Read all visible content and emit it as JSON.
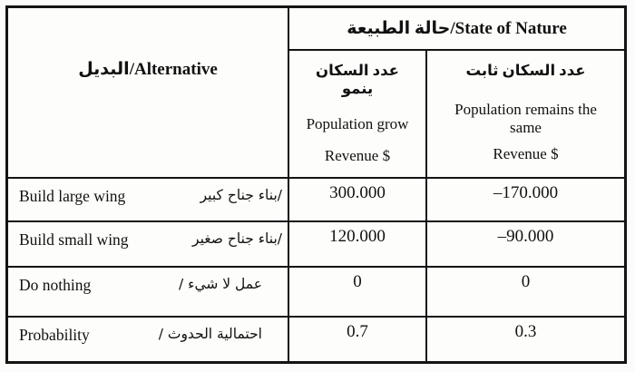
{
  "table": {
    "header": {
      "state_of_nature": "حالة الطبيعة/State of Nature",
      "alternative": "البديل/Alternative"
    },
    "columns": {
      "grow": {
        "arabic": "عدد السكان ينمو",
        "line1": "Population grow",
        "line2": "Revenue $"
      },
      "same": {
        "arabic": "عدد السكان ثابت",
        "line1": "Population remains the same",
        "line2": "Revenue $"
      }
    },
    "rows": [
      {
        "en": "Build large wing",
        "ar": "بناء جناح كبير/",
        "grow": "300.000",
        "same": "–170.000"
      },
      {
        "en": "Build small wing",
        "ar": "بناء جناح صغير/",
        "grow": "120.000",
        "same": "–90.000"
      },
      {
        "en": "Do nothing",
        "ar": "/  عمل لا شيء",
        "grow": "0",
        "same": "0"
      },
      {
        "en": "Probability",
        "ar": "/ احتمالية الحدوث",
        "grow": "0.7",
        "same": "0.3"
      }
    ]
  },
  "colors": {
    "border": "#141414",
    "background": "#fdfdfb",
    "text": "#111111"
  }
}
